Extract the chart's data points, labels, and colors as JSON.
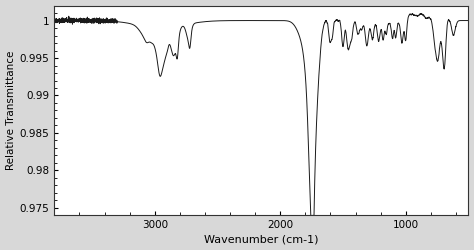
{
  "title": "",
  "xlabel": "Wavenumber (cm-1)",
  "ylabel": "Relative Transmittance",
  "xlim": [
    3800,
    500
  ],
  "ylim": [
    0.974,
    1.002
  ],
  "yticks": [
    0.975,
    0.98,
    0.985,
    0.99,
    0.995,
    1.0
  ],
  "xticks": [
    3000,
    2000,
    1000
  ],
  "line_color": "#1a1a1a",
  "background_color": "#d8d8d8",
  "plot_bg_color": "#ffffff",
  "figsize": [
    4.74,
    2.5
  ],
  "dpi": 100
}
